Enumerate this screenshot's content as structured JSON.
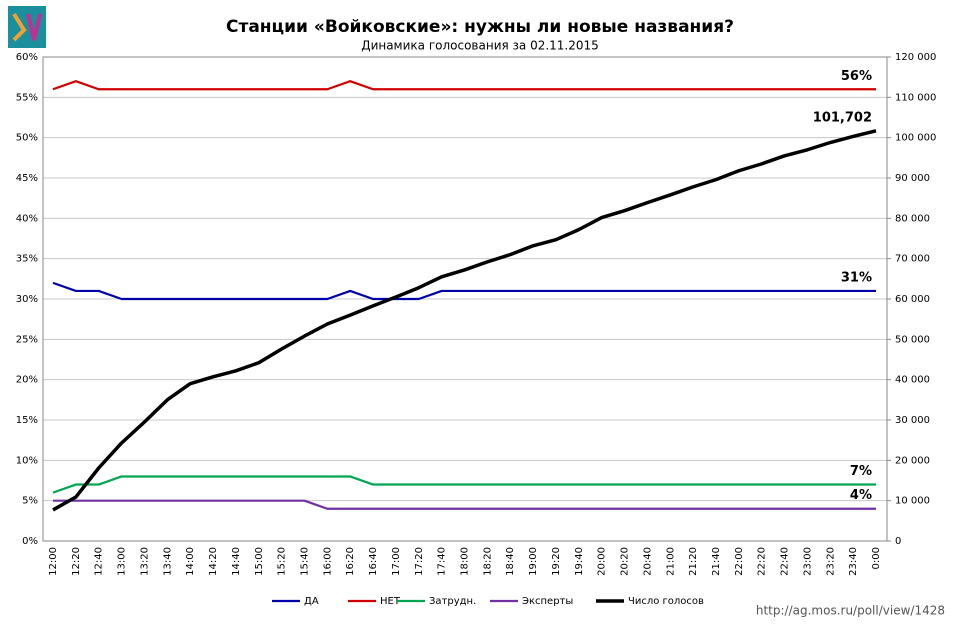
{
  "chart_data": {
    "type": "line",
    "title": "Станции «Войковские»: нужны ли новые названия?",
    "subtitle": "Динамика голосования за 02.11.2015",
    "source": "http://ag.mos.ru/poll/view/1428",
    "categories": [
      "12:00",
      "12:20",
      "12:40",
      "13:00",
      "13:20",
      "13:40",
      "14:00",
      "14:20",
      "14:40",
      "15:00",
      "15:20",
      "15:40",
      "16:00",
      "16:20",
      "16:40",
      "17:00",
      "17:20",
      "17:40",
      "18:00",
      "18:20",
      "18:40",
      "19:00",
      "19:20",
      "19:40",
      "20:00",
      "20:20",
      "20:40",
      "21:00",
      "21:20",
      "21:40",
      "22:00",
      "22:20",
      "22:40",
      "23:00",
      "23:20",
      "23:40",
      "0:00"
    ],
    "series": [
      {
        "name": "ДА",
        "color": "#0000a8",
        "values": [
          32,
          31,
          31,
          30,
          30,
          30,
          30,
          30,
          30,
          30,
          30,
          30,
          30,
          31,
          30,
          30,
          30,
          31,
          31,
          31,
          31,
          31,
          31,
          31,
          31,
          31,
          31,
          31,
          31,
          31,
          31,
          31,
          31,
          31,
          31,
          31,
          31
        ],
        "value_labels": [
          null,
          null,
          null,
          null,
          null,
          null,
          null,
          null,
          null,
          null,
          null,
          null,
          null,
          null,
          null,
          null,
          null,
          null,
          null,
          null,
          null,
          null,
          null,
          null,
          null,
          null,
          null,
          null,
          null,
          null,
          null,
          null,
          null,
          null,
          null,
          null,
          "31%"
        ]
      },
      {
        "name": "НЕТ",
        "color": "#d00000",
        "values": [
          56,
          57,
          56,
          56,
          56,
          56,
          56,
          56,
          56,
          56,
          56,
          56,
          56,
          57,
          56,
          56,
          56,
          56,
          56,
          56,
          56,
          56,
          56,
          56,
          56,
          56,
          56,
          56,
          56,
          56,
          56,
          56,
          56,
          56,
          56,
          56,
          56
        ],
        "value_labels": [
          null,
          null,
          null,
          null,
          null,
          null,
          null,
          null,
          null,
          null,
          null,
          null,
          null,
          null,
          null,
          null,
          null,
          null,
          null,
          null,
          null,
          null,
          null,
          null,
          null,
          null,
          null,
          null,
          null,
          null,
          null,
          null,
          null,
          null,
          null,
          null,
          "56%"
        ]
      },
      {
        "name": "Затрудн.",
        "color": "#00a550",
        "values": [
          6,
          7,
          7,
          8,
          8,
          8,
          8,
          8,
          8,
          8,
          8,
          8,
          8,
          8,
          7,
          7,
          7,
          7,
          7,
          7,
          7,
          7,
          7,
          7,
          7,
          7,
          7,
          7,
          7,
          7,
          7,
          7,
          7,
          7,
          7,
          7,
          7
        ],
        "value_labels": [
          null,
          null,
          null,
          null,
          null,
          null,
          null,
          null,
          null,
          null,
          null,
          null,
          null,
          null,
          null,
          null,
          null,
          null,
          null,
          null,
          null,
          null,
          null,
          null,
          null,
          null,
          null,
          null,
          null,
          null,
          null,
          null,
          null,
          null,
          null,
          null,
          "7%"
        ]
      },
      {
        "name": "Эксперты",
        "color": "#7030a0",
        "values": [
          5,
          5,
          5,
          5,
          5,
          5,
          5,
          5,
          5,
          5,
          5,
          5,
          4,
          4,
          4,
          4,
          4,
          4,
          4,
          4,
          4,
          4,
          4,
          4,
          4,
          4,
          4,
          4,
          4,
          4,
          4,
          4,
          4,
          4,
          4,
          4,
          4
        ],
        "value_labels": [
          null,
          null,
          null,
          null,
          null,
          null,
          null,
          null,
          null,
          null,
          null,
          null,
          null,
          null,
          null,
          null,
          null,
          null,
          null,
          null,
          null,
          null,
          null,
          null,
          null,
          null,
          null,
          null,
          null,
          null,
          null,
          null,
          null,
          null,
          null,
          null,
          "4%"
        ]
      },
      {
        "name": "Число голосов",
        "color": "#000000",
        "axis": "y2",
        "values": [
          7700,
          10900,
          18100,
          24300,
          29500,
          35000,
          39000,
          40700,
          42200,
          44200,
          47600,
          50800,
          53800,
          56000,
          58300,
          60500,
          62800,
          65500,
          67200,
          69200,
          71000,
          73200,
          74700,
          77200,
          80200,
          81900,
          83900,
          85800,
          87800,
          89600,
          91800,
          93500,
          95500,
          97000,
          98800,
          100300,
          101702
        ],
        "value_labels": [
          null,
          null,
          null,
          null,
          null,
          null,
          null,
          null,
          null,
          null,
          null,
          null,
          null,
          null,
          null,
          null,
          null,
          null,
          null,
          null,
          null,
          null,
          null,
          null,
          null,
          null,
          null,
          null,
          null,
          null,
          null,
          null,
          null,
          null,
          null,
          null,
          "101,702"
        ]
      }
    ],
    "ylim": [
      0,
      60
    ],
    "yticks": [
      {
        "value": 0,
        "label": "0%"
      },
      {
        "value": 5,
        "label": "5%"
      },
      {
        "value": 10,
        "label": "10%"
      },
      {
        "value": 15,
        "label": "15%"
      },
      {
        "value": 20,
        "label": "20%"
      },
      {
        "value": 25,
        "label": "25%"
      },
      {
        "value": 30,
        "label": "30%"
      },
      {
        "value": 35,
        "label": "35%"
      },
      {
        "value": 40,
        "label": "40%"
      },
      {
        "value": 45,
        "label": "45%"
      },
      {
        "value": 50,
        "label": "50%"
      },
      {
        "value": 55,
        "label": "55%"
      },
      {
        "value": 60,
        "label": "60%"
      }
    ],
    "y2lim": [
      0,
      120000
    ],
    "y2ticks": [
      0,
      {
        "value": 10000,
        "label": "10 000"
      },
      {
        "value": 20000,
        "label": "20 000"
      },
      {
        "value": 30000,
        "label": "30 000"
      },
      {
        "value": 40000,
        "label": "40 000"
      },
      {
        "value": 50000,
        "label": "50 000"
      },
      {
        "value": 60000,
        "label": "60 000"
      },
      {
        "value": 70000,
        "label": "70 000"
      },
      {
        "value": 80000,
        "label": "80 000"
      },
      {
        "value": 90000,
        "label": "90 000"
      },
      {
        "value": 100000,
        "label": "100 000"
      },
      {
        "value": 110000,
        "label": "110 000"
      },
      {
        "value": 120000,
        "label": "120 000"
      }
    ],
    "grid": true,
    "legend": "bottom"
  }
}
